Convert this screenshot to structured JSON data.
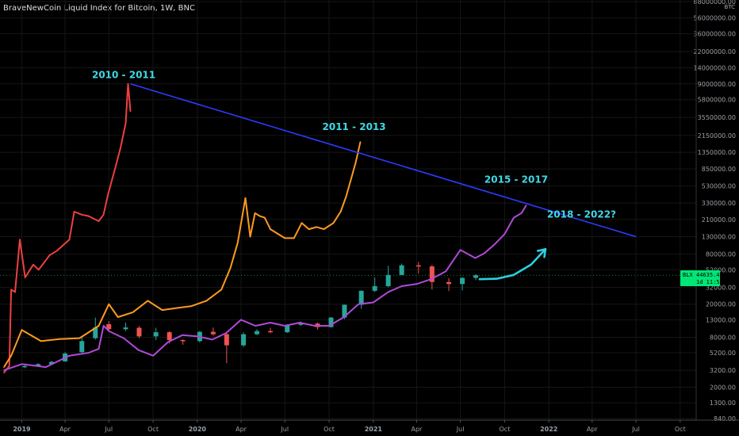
{
  "header": {
    "title": "BraveNewCoin Liquid Index for Bitcoin, 1W, BNC",
    "currency": "BTC"
  },
  "price_tag": {
    "symbol": "BLX",
    "price": "44635.45",
    "countdown": "1d 11:51",
    "color": "#00e676"
  },
  "chart_data": {
    "type": "line",
    "y_scale": "log",
    "ylim": [
      840,
      88000000
    ],
    "y_ticks": [
      "88000000.00",
      "56000000.00",
      "36000000.00",
      "22000000.00",
      "14000000.00",
      "9000000.00",
      "5800000.00",
      "3550000.00",
      "2150000.00",
      "1350000.00",
      "850000.00",
      "530000.00",
      "330000.00",
      "210000.00",
      "130000.00",
      "80000.00",
      "52000.00",
      "32000.00",
      "20000.00",
      "13000.00",
      "8000.00",
      "5200.00",
      "3200.00",
      "2000.00",
      "1300.00",
      "840.00"
    ],
    "y_tick_values": [
      88000000,
      56000000,
      36000000,
      22000000,
      14000000,
      9000000,
      5800000,
      3550000,
      2150000,
      1350000,
      850000,
      530000,
      330000,
      210000,
      130000,
      80000,
      52000,
      32000,
      20000,
      13000,
      8000,
      5200,
      3200,
      2000,
      1300,
      840
    ],
    "x_ticks": [
      "2019",
      "Apr",
      "Jul",
      "Oct",
      "2020",
      "Apr",
      "Jul",
      "Oct",
      "2021",
      "Apr",
      "Jul",
      "Oct",
      "2022",
      "Apr",
      "Jul",
      "Oct"
    ],
    "x_tick_bold": [
      true,
      false,
      false,
      false,
      true,
      false,
      false,
      false,
      true,
      false,
      false,
      false,
      true,
      false,
      false,
      false
    ],
    "xlim": [
      "2018-11-20",
      "2022-10-31"
    ],
    "x_tick_dates": [
      "2019-01-01",
      "2019-04-01",
      "2019-07-01",
      "2019-10-01",
      "2020-01-01",
      "2020-04-01",
      "2020-07-01",
      "2020-10-01",
      "2021-01-01",
      "2021-04-01",
      "2021-07-01",
      "2021-10-01",
      "2022-01-01",
      "2022-04-01",
      "2022-07-01",
      "2022-10-01"
    ],
    "series": [
      {
        "color": "#ef4040",
        "x": [
          "2018-11-25",
          "2018-12-06",
          "2018-12-10",
          "2018-12-18",
          "2018-12-28",
          "2019-01-08",
          "2019-01-25",
          "2019-02-05",
          "2019-02-28",
          "2019-03-15",
          "2019-04-10",
          "2019-04-20",
          "2019-05-05",
          "2019-05-20",
          "2019-06-10",
          "2019-06-20",
          "2019-06-29",
          "2019-07-15",
          "2019-07-25",
          "2019-08-05",
          "2019-08-10",
          "2019-08-15"
        ],
        "y": [
          3000,
          3600,
          30000,
          28000,
          120000,
          42000,
          60000,
          52000,
          78000,
          88000,
          120000,
          260000,
          240000,
          230000,
          200000,
          240000,
          410000,
          900000,
          1500000,
          3000000,
          9000000,
          4200000
        ]
      },
      {
        "color": "#ff9a1f",
        "x": [
          "2018-11-25",
          "2018-12-10",
          "2019-01-01",
          "2019-02-10",
          "2019-03-20",
          "2019-05-01",
          "2019-06-10",
          "2019-07-01",
          "2019-07-20",
          "2019-08-20",
          "2019-09-20",
          "2019-10-20",
          "2019-11-20",
          "2019-12-20",
          "2020-01-20",
          "2020-02-20",
          "2020-03-10",
          "2020-03-25",
          "2020-04-10",
          "2020-04-20",
          "2020-04-30",
          "2020-05-10",
          "2020-05-20",
          "2020-06-01",
          "2020-07-01",
          "2020-07-20",
          "2020-08-05",
          "2020-08-20",
          "2020-09-05",
          "2020-09-20",
          "2020-10-10",
          "2020-10-25",
          "2020-11-05",
          "2020-11-15",
          "2020-11-25",
          "2020-12-05"
        ],
        "y": [
          3500,
          4800,
          9800,
          7200,
          7600,
          7800,
          11000,
          20000,
          14000,
          16000,
          22000,
          17000,
          18000,
          19000,
          22000,
          30000,
          55000,
          110000,
          380000,
          130000,
          250000,
          230000,
          220000,
          160000,
          125000,
          125000,
          190000,
          160000,
          170000,
          160000,
          190000,
          260000,
          390000,
          620000,
          1000000,
          1800000
        ]
      },
      {
        "color": "#b04ad8",
        "x": [
          "2018-11-25",
          "2019-01-01",
          "2019-02-20",
          "2019-04-10",
          "2019-05-20",
          "2019-06-10",
          "2019-06-20",
          "2019-07-01",
          "2019-08-01",
          "2019-09-01",
          "2019-10-01",
          "2019-11-01",
          "2019-12-01",
          "2020-01-01",
          "2020-02-01",
          "2020-03-01",
          "2020-04-01",
          "2020-05-01",
          "2020-06-01",
          "2020-07-01",
          "2020-08-01",
          "2020-09-01",
          "2020-10-01",
          "2020-11-01",
          "2020-12-01",
          "2021-01-01",
          "2021-02-01",
          "2021-03-01",
          "2021-04-01",
          "2021-05-01",
          "2021-06-01",
          "2021-07-01",
          "2021-08-01",
          "2021-08-20",
          "2021-09-10",
          "2021-10-01",
          "2021-10-20",
          "2021-11-05",
          "2021-11-15"
        ],
        "y": [
          3200,
          3800,
          3500,
          4800,
          5200,
          5800,
          11000,
          9500,
          7800,
          5600,
          4800,
          7000,
          8500,
          8200,
          7500,
          9000,
          13000,
          11000,
          12000,
          11000,
          12000,
          11000,
          11000,
          14000,
          20000,
          21000,
          28000,
          33000,
          35000,
          40000,
          50000,
          90000,
          72000,
          82000,
          105000,
          140000,
          220000,
          250000,
          310000
        ]
      }
    ],
    "candles": [
      [
        "2019-01-07",
        3500,
        3600,
        3750,
        3400
      ],
      [
        "2019-02-04",
        3600,
        3800,
        3900,
        3500
      ],
      [
        "2019-03-04",
        3800,
        4050,
        4150,
        3700
      ],
      [
        "2019-04-01",
        4100,
        5100,
        5300,
        4050
      ],
      [
        "2019-05-06",
        5300,
        7200,
        8200,
        5200
      ],
      [
        "2019-06-03",
        7800,
        10500,
        13800,
        7500
      ],
      [
        "2019-07-01",
        11500,
        10000,
        12500,
        9400
      ],
      [
        "2019-08-05",
        10000,
        10500,
        12000,
        9500
      ],
      [
        "2019-09-02",
        10400,
        8200,
        10900,
        7800
      ],
      [
        "2019-10-07",
        8200,
        9200,
        10400,
        7400
      ],
      [
        "2019-11-04",
        9200,
        7400,
        9500,
        6700
      ],
      [
        "2019-12-02",
        7400,
        7200,
        7600,
        6500
      ],
      [
        "2020-01-06",
        7200,
        9300,
        9500,
        6900
      ],
      [
        "2020-02-03",
        9300,
        8700,
        10500,
        8400
      ],
      [
        "2020-03-02",
        8700,
        6400,
        9100,
        3900
      ],
      [
        "2020-04-06",
        6400,
        8700,
        9200,
        6100
      ],
      [
        "2020-05-04",
        8700,
        9500,
        10000,
        8500
      ],
      [
        "2020-06-01",
        9500,
        9200,
        10400,
        8900
      ],
      [
        "2020-07-06",
        9200,
        11300,
        11500,
        9000
      ],
      [
        "2020-08-03",
        11300,
        11700,
        12400,
        11000
      ],
      [
        "2020-09-07",
        11700,
        10600,
        12000,
        9900
      ],
      [
        "2020-10-05",
        10600,
        13800,
        14000,
        10500
      ],
      [
        "2020-11-02",
        13800,
        19700,
        19800,
        13200
      ],
      [
        "2020-12-07",
        19700,
        29000,
        29300,
        17600
      ],
      [
        "2021-01-04",
        29000,
        33000,
        42000,
        28100
      ],
      [
        "2021-02-01",
        33000,
        45000,
        58000,
        32000
      ],
      [
        "2021-03-01",
        45000,
        58800,
        61700,
        44900
      ],
      [
        "2021-04-05",
        58800,
        57000,
        64800,
        47000
      ],
      [
        "2021-05-03",
        57000,
        37000,
        59500,
        30000
      ],
      [
        "2021-06-07",
        37000,
        35000,
        41300,
        28800
      ],
      [
        "2021-07-05",
        35000,
        41500,
        42300,
        29300
      ],
      [
        "2021-08-02",
        41500,
        44635,
        46000,
        39000
      ]
    ],
    "trendline": {
      "x": [
        "2019-08-15",
        "2022-07-01"
      ],
      "y": [
        9000000,
        130000
      ],
      "color": "#2d3bff"
    },
    "arrow": {
      "color": "#2ad0e0",
      "x": [
        "2021-08-10",
        "2021-09-15",
        "2021-10-20",
        "2021-11-25",
        "2021-12-25"
      ],
      "y": [
        40000,
        40500,
        45000,
        60000,
        92000
      ]
    },
    "annotations": [
      {
        "text": "2010 - 2011",
        "x": "2019-08-01",
        "y": 10500000
      },
      {
        "text": "2011 - 2013",
        "x": "2020-11-22",
        "y": 2500000
      },
      {
        "text": "2015 - 2017",
        "x": "2021-10-25",
        "y": 580000
      },
      {
        "text": "2018 - 2022?",
        "x": "2022-03-10",
        "y": 220000
      }
    ],
    "grid": true,
    "last_price": 44635.45
  }
}
